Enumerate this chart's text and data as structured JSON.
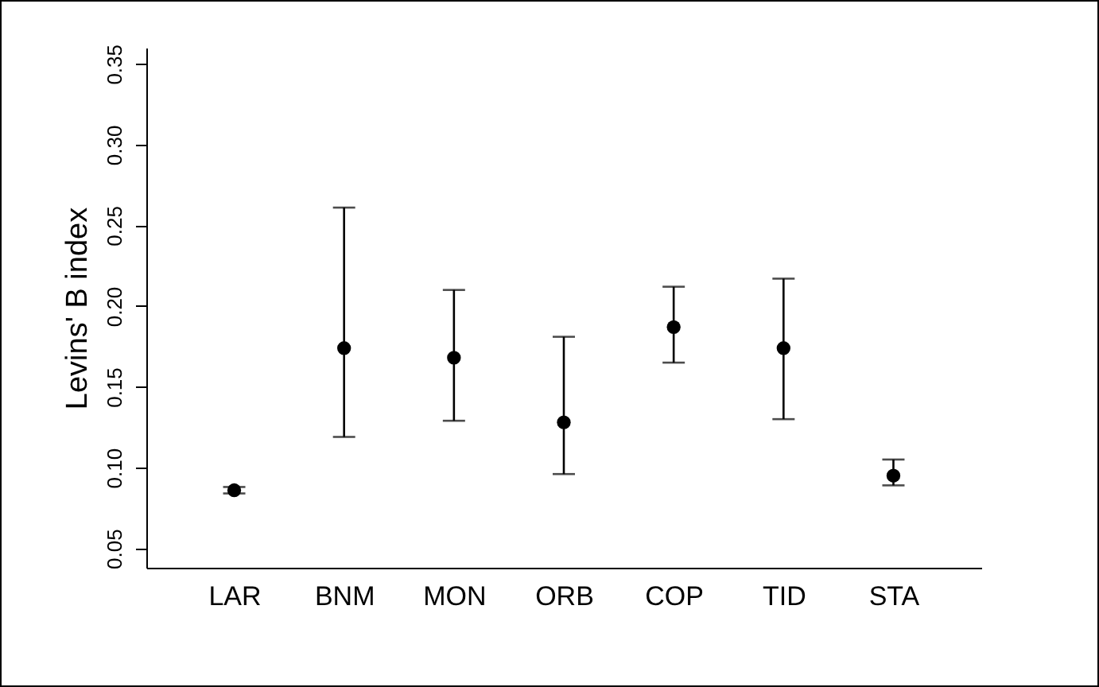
{
  "chart_data": {
    "type": "scatter",
    "ylabel": "Levins' B index",
    "categories": [
      "LAR",
      "BNM",
      "MON",
      "ORB",
      "COP",
      "TID",
      "STA"
    ],
    "values": [
      0.086,
      0.174,
      0.168,
      0.128,
      0.187,
      0.174,
      0.095
    ],
    "errors": [
      [
        0.084,
        0.088
      ],
      [
        0.119,
        0.261
      ],
      [
        0.129,
        0.21
      ],
      [
        0.096,
        0.181
      ],
      [
        0.165,
        0.212
      ],
      [
        0.13,
        0.217
      ],
      [
        0.089,
        0.105
      ]
    ],
    "color": "#000000",
    "marker": "circle",
    "grid": false,
    "ylim": [
      0.038,
      0.36
    ],
    "yticks": [
      0.05,
      {
        "value": 0.1,
        "label": "0.10"
      },
      0.15,
      {
        "value": 0.2,
        "label": "0.20"
      },
      0.25,
      {
        "value": 0.3,
        "label": "0.30"
      },
      0.35
    ]
  }
}
